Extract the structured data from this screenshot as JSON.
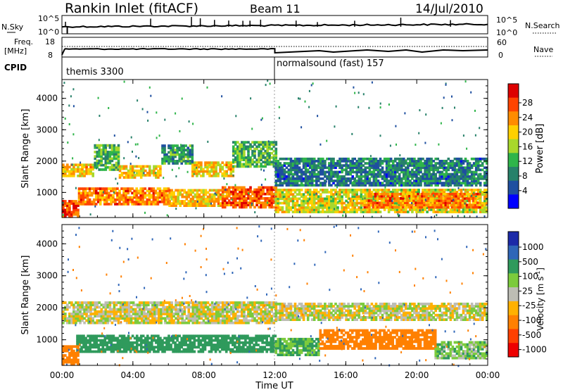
{
  "header": {
    "title": "Rankin Inlet (fitACF)",
    "beam": "Beam 11",
    "date": "14/Jul/2010"
  },
  "noise_panel": {
    "left_label": "N.Sky",
    "left_ticks": [
      "10^5",
      "10^0"
    ],
    "right_ticks": [
      "10^5",
      "10^0"
    ],
    "right_label": "N.Search"
  },
  "freq_panel": {
    "left_label_line1": "Freq.",
    "left_label_line2": "[MHz]",
    "left_ticks": [
      "18",
      "8"
    ],
    "right_ticks": [
      "60",
      "0"
    ],
    "right_label": "Nave"
  },
  "cpid_panel": {
    "label": "CPID",
    "modes": [
      {
        "name": "themis 3300",
        "start_hour": 0
      },
      {
        "name": "normalsound (fast) 157",
        "start_hour": 12
      }
    ]
  },
  "x_axis": {
    "label": "Time UT",
    "ticks": [
      "00:00",
      "04:00",
      "08:00",
      "12:00",
      "16:00",
      "20:00",
      "00:00"
    ]
  },
  "chart_data": [
    {
      "type": "heatmap",
      "name": "power",
      "ylabel": "Slant Range [km]",
      "xlim_hours": [
        0,
        24
      ],
      "ylim": [
        200,
        4600
      ],
      "yticks": [
        "1000",
        "2000",
        "3000",
        "4000"
      ],
      "colorbar": {
        "label": "Power [dB]",
        "ticks": [
          "28",
          "24",
          "20",
          "16",
          "12",
          "8",
          "4"
        ],
        "colors": [
          "#dd0000",
          "#ff4400",
          "#ff8c00",
          "#ffd000",
          "#a8d82c",
          "#2fb54a",
          "#27816a",
          "#1f4fa0",
          "#0000ff"
        ]
      },
      "bands": [
        {
          "t0": 0,
          "t1": 1.8,
          "r0": 1500,
          "r1": 1900,
          "level": 20
        },
        {
          "t0": 1.8,
          "t1": 3.2,
          "r0": 1700,
          "r1": 2500,
          "level": 12
        },
        {
          "t0": 3.2,
          "t1": 5.6,
          "r0": 1450,
          "r1": 1850,
          "level": 20
        },
        {
          "t0": 5.6,
          "t1": 7.3,
          "r0": 1900,
          "r1": 2500,
          "level": 10
        },
        {
          "t0": 7.3,
          "t1": 9.6,
          "r0": 1500,
          "r1": 1950,
          "level": 20
        },
        {
          "t0": 9.6,
          "t1": 12.0,
          "r0": 1800,
          "r1": 2600,
          "level": 12
        },
        {
          "t0": 0.9,
          "t1": 6.0,
          "r0": 600,
          "r1": 1100,
          "level": 24
        },
        {
          "t0": 6.0,
          "t1": 9.0,
          "r0": 550,
          "r1": 1100,
          "level": 20
        },
        {
          "t0": 9.0,
          "t1": 12.0,
          "r0": 500,
          "r1": 1150,
          "level": 26
        },
        {
          "t0": 12.0,
          "t1": 24.0,
          "r0": 350,
          "r1": 1100,
          "level": 18
        },
        {
          "t0": 17.0,
          "t1": 23.5,
          "r0": 500,
          "r1": 950,
          "level": 24
        },
        {
          "t0": 12.0,
          "t1": 24.0,
          "r0": 1200,
          "r1": 2100,
          "level": 8
        },
        {
          "t0": 0,
          "t1": 0.9,
          "r0": 200,
          "r1": 700,
          "level": 28
        }
      ]
    },
    {
      "type": "heatmap",
      "name": "velocity",
      "ylabel": "Slant Range [km]",
      "xlim_hours": [
        0,
        24
      ],
      "ylim": [
        200,
        4600
      ],
      "yticks": [
        "1000",
        "2000",
        "3000",
        "4000"
      ],
      "colorbar": {
        "label": "Velocity [m s^-1]",
        "ticks": [
          "1000",
          "500",
          "100",
          "25",
          "-25",
          "-100",
          "-500",
          "-1000"
        ],
        "colors": [
          "#1c2aa8",
          "#2f66b8",
          "#2f9a5c",
          "#7ccb3c",
          "#bdbdb4",
          "#ffb100",
          "#ff8000",
          "#ff4000",
          "#ee0000"
        ]
      },
      "bands": [
        {
          "t0": 0,
          "t1": 12.0,
          "r0": 1500,
          "r1": 2200,
          "level": 0
        },
        {
          "t0": 12.0,
          "t1": 24.0,
          "r0": 1600,
          "r1": 2100,
          "level": 0
        },
        {
          "t0": 0.8,
          "t1": 12.0,
          "r0": 600,
          "r1": 1150,
          "level": 200
        },
        {
          "t0": 12.0,
          "t1": 14.5,
          "r0": 500,
          "r1": 1000,
          "level": 100
        },
        {
          "t0": 14.5,
          "t1": 21.0,
          "r0": 700,
          "r1": 1300,
          "level": -400
        },
        {
          "t0": 21.0,
          "t1": 24.0,
          "r0": 400,
          "r1": 900,
          "level": 60
        },
        {
          "t0": 0,
          "t1": 0.9,
          "r0": 200,
          "r1": 800,
          "level": -200
        }
      ]
    }
  ]
}
